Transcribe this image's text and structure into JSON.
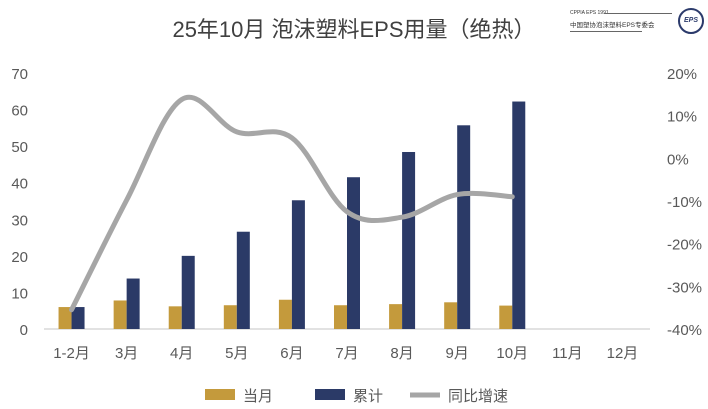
{
  "logo": {
    "line1": "CPPIA EPS 1991",
    "line2": "中国塑协泡沫塑料EPS专委会",
    "seal": "EPS"
  },
  "chart_data": {
    "type": "bar+line",
    "title": "25年10月 泡沫塑料EPS用量（绝热）",
    "categories": [
      "1-2月",
      "3月",
      "4月",
      "5月",
      "6月",
      "7月",
      "8月",
      "9月",
      "10月",
      "11月",
      "12月"
    ],
    "series": [
      {
        "name": "当月",
        "type": "bar",
        "axis": "left",
        "color": "#C49A3C",
        "values": [
          6.0,
          7.8,
          6.2,
          6.5,
          8.0,
          6.5,
          6.8,
          7.3,
          6.4,
          null,
          null
        ]
      },
      {
        "name": "累计",
        "type": "bar",
        "axis": "left",
        "color": "#2B3A67",
        "values": [
          6.0,
          13.8,
          20.0,
          26.6,
          35.2,
          41.5,
          48.4,
          55.7,
          62.2,
          null,
          null
        ]
      },
      {
        "name": "同比增速",
        "type": "line",
        "axis": "right",
        "smooth": true,
        "color": "#A6A6A6",
        "values": [
          -35.5,
          -9.8,
          13.8,
          6.2,
          4.8,
          -12.5,
          -13.8,
          -8.5,
          -9.0,
          null,
          null
        ]
      }
    ],
    "y_left": {
      "min": 0,
      "max": 70,
      "ticks": [
        "0",
        "10",
        "20",
        "30",
        "40",
        "50",
        "60",
        "70"
      ]
    },
    "y_right": {
      "min": -40,
      "max": 20,
      "ticks": [
        "-40%",
        "-30%",
        "-20%",
        "-10%",
        "0%",
        "10%",
        "20%"
      ]
    },
    "grid": false,
    "legend": "bottom"
  }
}
